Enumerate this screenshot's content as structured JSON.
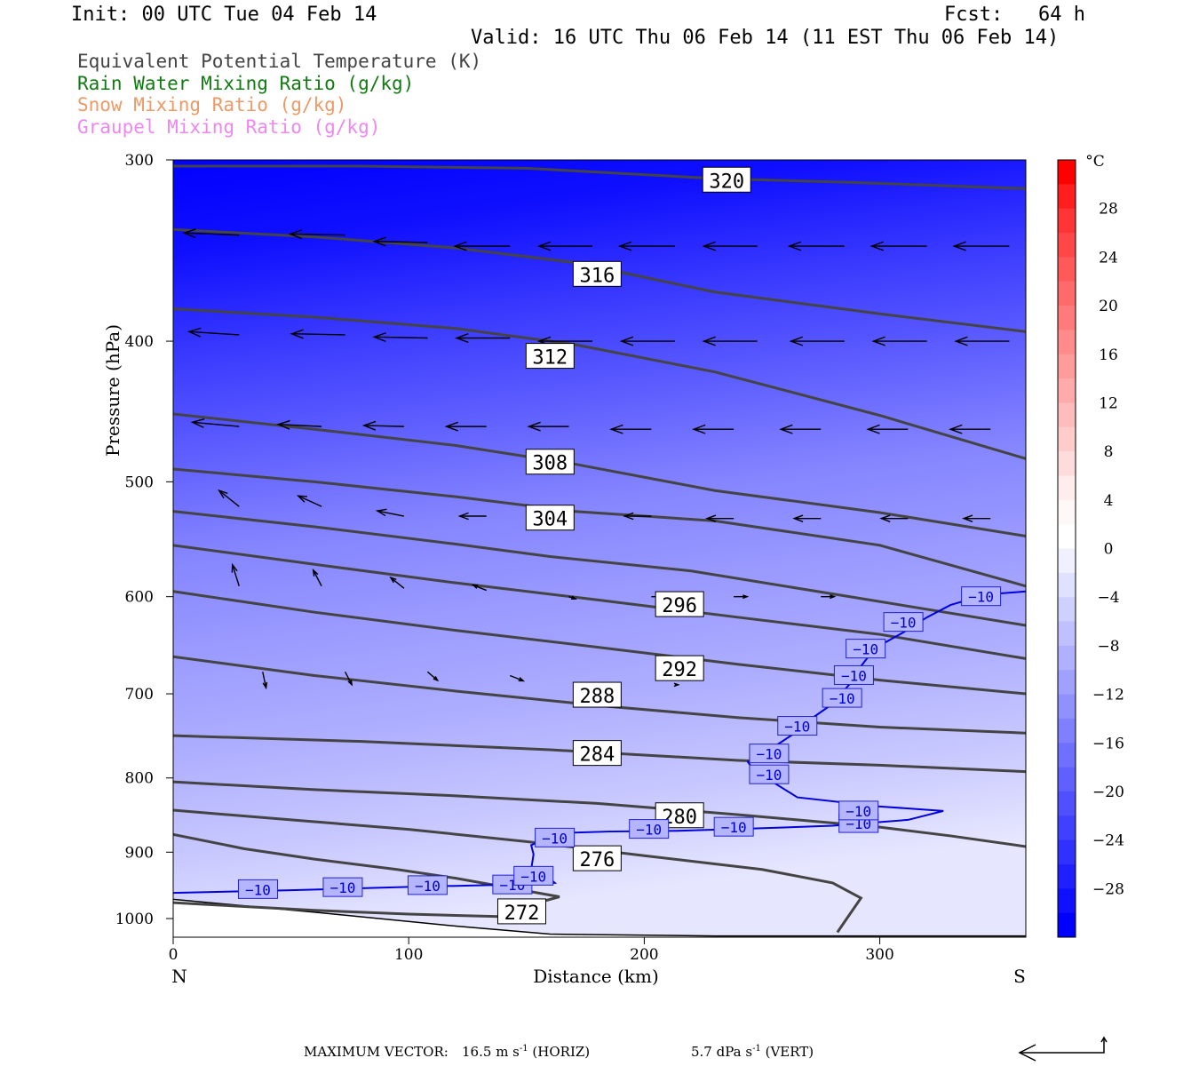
{
  "header": {
    "init": "Init: 00 UTC Tue 04 Feb 14",
    "fcst": "Fcst:   64 h",
    "valid": "Valid: 16 UTC Thu 06 Feb 14 (11 EST Thu 06 Feb 14)"
  },
  "fields": [
    {
      "label": "Equivalent Potential Temperature (K)",
      "color": "#444444"
    },
    {
      "label": "Rain Water Mixing Ratio (g/kg)",
      "color": "#127a12"
    },
    {
      "label": "Snow Mixing Ratio (g/kg)",
      "color": "#ee9966"
    },
    {
      "label": "Graupel Mixing Ratio (g/kg)",
      "color": "#ee88ee"
    }
  ],
  "chart_data": {
    "type": "cross-section",
    "xlabel": "Distance (km)",
    "ylabel": "Pressure (hPa)",
    "xlim": [
      0,
      362
    ],
    "ylim": [
      300,
      1030
    ],
    "y_scale": "log-pressure (inverted)",
    "x_ticks": [
      0,
      100,
      200,
      300
    ],
    "y_ticks": [
      300,
      400,
      500,
      600,
      700,
      800,
      900,
      1000
    ],
    "x_end_labels": {
      "left": "N",
      "right": "S"
    },
    "colorbar": {
      "unit": "°C",
      "tick_labels": [
        "28",
        "24",
        "20",
        "16",
        "12",
        "8",
        "4",
        "0",
        "−4",
        "−8",
        "−12",
        "−16",
        "−20",
        "−24",
        "−28"
      ],
      "levels": [
        32,
        30,
        28,
        26,
        24,
        22,
        20,
        18,
        16,
        14,
        12,
        10,
        8,
        6,
        4,
        2,
        0,
        -2,
        -4,
        -6,
        -8,
        -10,
        -12,
        -14,
        -16,
        -18,
        -20,
        -22,
        -24,
        -26,
        -28,
        -30,
        -32
      ],
      "colors": [
        "#ff0000",
        "#ff1e1e",
        "#ff3434",
        "#ff4747",
        "#ff5959",
        "#ff6a6a",
        "#ff7a7a",
        "#ff8b8b",
        "#ff9b9b",
        "#ffabab",
        "#ffbcbc",
        "#ffcccc",
        "#ffdcdc",
        "#ffecec",
        "#fff8f8",
        "#ffffff",
        "#f0f0ff",
        "#e0e0ff",
        "#d0d0ff",
        "#c0c0ff",
        "#b0b0ff",
        "#a0a0ff",
        "#9090ff",
        "#8080ff",
        "#7070ff",
        "#6060ff",
        "#5050ff",
        "#4040ff",
        "#3030ff",
        "#2020ff",
        "#1010ff",
        "#0000ff"
      ]
    },
    "theta_e_contours": [
      {
        "level": 272,
        "label": "272",
        "points": [
          [
            0,
            975
          ],
          [
            25,
            980
          ],
          [
            60,
            987
          ],
          [
            100,
            993
          ],
          [
            140,
            997
          ],
          [
            155,
            975
          ],
          [
            164,
            966
          ],
          [
            150,
            957
          ],
          [
            120,
            938
          ],
          [
            95,
            925
          ],
          [
            60,
            910
          ],
          [
            30,
            895
          ],
          [
            0,
            875
          ]
        ]
      },
      {
        "level": 276,
        "label": "276",
        "points": [
          [
            0,
            842
          ],
          [
            50,
            855
          ],
          [
            100,
            868
          ],
          [
            150,
            885
          ],
          [
            200,
            905
          ],
          [
            250,
            925
          ],
          [
            280,
            945
          ],
          [
            292,
            968
          ],
          [
            286,
            1000
          ],
          [
            282,
            1022
          ]
        ]
      },
      {
        "level": 280,
        "label": "280",
        "points": [
          [
            0,
            805
          ],
          [
            60,
            815
          ],
          [
            120,
            823
          ],
          [
            180,
            833
          ],
          [
            240,
            848
          ],
          [
            300,
            865
          ],
          [
            330,
            877
          ],
          [
            362,
            892
          ]
        ]
      },
      {
        "level": 284,
        "label": "284",
        "points": [
          [
            0,
            748
          ],
          [
            80,
            755
          ],
          [
            160,
            765
          ],
          [
            240,
            778
          ],
          [
            300,
            784
          ],
          [
            362,
            792
          ]
        ]
      },
      {
        "level": 288,
        "label": "288",
        "points": [
          [
            0,
            660
          ],
          [
            60,
            680
          ],
          [
            120,
            697
          ],
          [
            180,
            713
          ],
          [
            240,
            727
          ],
          [
            300,
            738
          ],
          [
            362,
            745
          ]
        ]
      },
      {
        "level": 292,
        "label": "292",
        "points": [
          [
            0,
            595
          ],
          [
            60,
            615
          ],
          [
            120,
            633
          ],
          [
            180,
            650
          ],
          [
            240,
            668
          ],
          [
            300,
            685
          ],
          [
            362,
            700
          ]
        ]
      },
      {
        "level": 296,
        "label": "296",
        "points": [
          [
            0,
            553
          ],
          [
            60,
            570
          ],
          [
            120,
            587
          ],
          [
            180,
            603
          ],
          [
            240,
            620
          ],
          [
            300,
            637
          ],
          [
            362,
            662
          ]
        ]
      },
      {
        "level": 300,
        "label": "",
        "points": [
          [
            0,
            524
          ],
          [
            60,
            537
          ],
          [
            120,
            552
          ],
          [
            160,
            563
          ],
          [
            220,
            576
          ],
          [
            290,
            601
          ],
          [
            362,
            628
          ]
        ]
      },
      {
        "level": 304,
        "label": "304",
        "points": [
          [
            0,
            490
          ],
          [
            60,
            500
          ],
          [
            120,
            512
          ],
          [
            170,
            524
          ],
          [
            230,
            532
          ],
          [
            300,
            553
          ],
          [
            362,
            590
          ]
        ]
      },
      {
        "level": 308,
        "label": "308",
        "points": [
          [
            0,
            449
          ],
          [
            60,
            460
          ],
          [
            120,
            472
          ],
          [
            170,
            486
          ],
          [
            230,
            507
          ],
          [
            300,
            525
          ],
          [
            362,
            545
          ]
        ]
      },
      {
        "level": 312,
        "label": "312",
        "points": [
          [
            0,
            380
          ],
          [
            60,
            385
          ],
          [
            120,
            392
          ],
          [
            170,
            402
          ],
          [
            230,
            420
          ],
          [
            300,
            450
          ],
          [
            362,
            482
          ]
        ]
      },
      {
        "level": 316,
        "label": "316",
        "points": [
          [
            0,
            335
          ],
          [
            60,
            339
          ],
          [
            120,
            345
          ],
          [
            170,
            353
          ],
          [
            230,
            370
          ],
          [
            300,
            383
          ],
          [
            362,
            394
          ]
        ]
      },
      {
        "level": 320,
        "label": "320",
        "points": [
          [
            0,
            303
          ],
          [
            80,
            303
          ],
          [
            150,
            304
          ],
          [
            230,
            309
          ],
          [
            290,
            311
          ],
          [
            362,
            314
          ]
        ]
      }
    ],
    "temperature_contours": [
      {
        "level": -10,
        "label": "−10",
        "points": [
          [
            0,
            960
          ],
          [
            50,
            956
          ],
          [
            100,
            951
          ],
          [
            138,
            948
          ],
          [
            148,
            947
          ],
          [
            162,
            945
          ],
          [
            158,
            933
          ],
          [
            152,
            925
          ],
          [
            153,
            903
          ],
          [
            152,
            890
          ],
          [
            165,
            873
          ],
          [
            185,
            871
          ],
          [
            214,
            870
          ],
          [
            245,
            867
          ],
          [
            280,
            863
          ],
          [
            312,
            855
          ],
          [
            327,
            843
          ],
          [
            300,
            837
          ],
          [
            265,
            825
          ],
          [
            255,
            806
          ],
          [
            250,
            796
          ],
          [
            246,
            788
          ],
          [
            244,
            780
          ],
          [
            250,
            770
          ],
          [
            258,
            756
          ],
          [
            265,
            743
          ],
          [
            270,
            730
          ],
          [
            279,
            713
          ],
          [
            287,
            690
          ],
          [
            292,
            670
          ],
          [
            298,
            651
          ],
          [
            310,
            635
          ],
          [
            320,
            620
          ],
          [
            330,
            608
          ],
          [
            345,
            598
          ],
          [
            362,
            595
          ]
        ]
      }
    ],
    "tick_label_contour_labels": [
      "−10"
    ],
    "wind_vectors": [
      {
        "x": 28,
        "p": 338,
        "u": -16.5,
        "w": 0.2
      },
      {
        "x": 73,
        "p": 338,
        "u": -16.5,
        "w": 0.1
      },
      {
        "x": 108,
        "p": 342,
        "u": -16,
        "w": 0.1
      },
      {
        "x": 143,
        "p": 344,
        "u": -16.5,
        "w": 0
      },
      {
        "x": 178,
        "p": 344,
        "u": -16,
        "w": 0
      },
      {
        "x": 213,
        "p": 344,
        "u": -16.5,
        "w": 0
      },
      {
        "x": 248,
        "p": 344,
        "u": -16,
        "w": 0
      },
      {
        "x": 285,
        "p": 344,
        "u": -16.5,
        "w": 0
      },
      {
        "x": 320,
        "p": 344,
        "u": -16.5,
        "w": 0
      },
      {
        "x": 355,
        "p": 344,
        "u": -16.5,
        "w": 0
      },
      {
        "x": 28,
        "p": 396,
        "u": -15,
        "w": 0.3
      },
      {
        "x": 73,
        "p": 396,
        "u": -16,
        "w": 0.1
      },
      {
        "x": 108,
        "p": 398,
        "u": -16,
        "w": 0.1
      },
      {
        "x": 143,
        "p": 398,
        "u": -16,
        "w": 0
      },
      {
        "x": 178,
        "p": 400,
        "u": -16,
        "w": 0
      },
      {
        "x": 213,
        "p": 400,
        "u": -16,
        "w": 0
      },
      {
        "x": 248,
        "p": 400,
        "u": -16,
        "w": 0
      },
      {
        "x": 285,
        "p": 400,
        "u": -16,
        "w": 0
      },
      {
        "x": 320,
        "p": 400,
        "u": -16,
        "w": 0
      },
      {
        "x": 355,
        "p": 400,
        "u": -16,
        "w": 0
      },
      {
        "x": 28,
        "p": 458,
        "u": -14,
        "w": 0.4
      },
      {
        "x": 63,
        "p": 458,
        "u": -13,
        "w": 0.2
      },
      {
        "x": 98,
        "p": 458,
        "u": -12,
        "w": 0.1
      },
      {
        "x": 133,
        "p": 458,
        "u": -12,
        "w": 0
      },
      {
        "x": 168,
        "p": 458,
        "u": -12,
        "w": 0
      },
      {
        "x": 203,
        "p": 460,
        "u": -12,
        "w": 0
      },
      {
        "x": 238,
        "p": 460,
        "u": -12,
        "w": 0
      },
      {
        "x": 275,
        "p": 460,
        "u": -12,
        "w": 0
      },
      {
        "x": 312,
        "p": 460,
        "u": -12,
        "w": 0
      },
      {
        "x": 347,
        "p": 460,
        "u": -12,
        "w": 0
      },
      {
        "x": 28,
        "p": 520,
        "u": -6,
        "w": 1.5
      },
      {
        "x": 63,
        "p": 520,
        "u": -7,
        "w": 1.0
      },
      {
        "x": 98,
        "p": 528,
        "u": -8,
        "w": 0.5
      },
      {
        "x": 133,
        "p": 528,
        "u": -8,
        "w": 0
      },
      {
        "x": 168,
        "p": 528,
        "u": -8,
        "w": 0
      },
      {
        "x": 203,
        "p": 528,
        "u": -8,
        "w": 0
      },
      {
        "x": 238,
        "p": 530,
        "u": -8,
        "w": 0
      },
      {
        "x": 275,
        "p": 530,
        "u": -8,
        "w": 0
      },
      {
        "x": 312,
        "p": 530,
        "u": -8,
        "w": 0
      },
      {
        "x": 347,
        "p": 530,
        "u": -8,
        "w": 0
      },
      {
        "x": 28,
        "p": 590,
        "u": -2,
        "w": 2.0
      },
      {
        "x": 63,
        "p": 590,
        "u": -2.5,
        "w": 1.5
      },
      {
        "x": 98,
        "p": 592,
        "u": -4,
        "w": 1.0
      },
      {
        "x": 133,
        "p": 594,
        "u": -4,
        "w": 0.5
      },
      {
        "x": 168,
        "p": 600,
        "u": 2,
        "w": -0.2
      },
      {
        "x": 203,
        "p": 600,
        "u": 4,
        "w": 0
      },
      {
        "x": 238,
        "p": 600,
        "u": 4,
        "w": 0
      },
      {
        "x": 275,
        "p": 600,
        "u": 4,
        "w": 0
      },
      {
        "x": 38,
        "p": 676,
        "u": 1,
        "w": -1.5
      },
      {
        "x": 73,
        "p": 676,
        "u": 2,
        "w": -1.2
      },
      {
        "x": 108,
        "p": 676,
        "u": 3,
        "w": -0.8
      },
      {
        "x": 143,
        "p": 680,
        "u": 4,
        "w": -0.5
      },
      {
        "x": 178,
        "p": 688,
        "u": 3,
        "w": -0.3
      },
      {
        "x": 213,
        "p": 690,
        "u": 1,
        "w": 0
      }
    ],
    "max_vector": {
      "horiz": "16.5",
      "vert": "5.7"
    }
  },
  "footer": {
    "max_vector_label": "MAXIMUM VECTOR:",
    "horiz_value": "16.5",
    "horiz_unit_pre": "m s",
    "horiz_unit_sup": "-1",
    "horiz_tag": "(HORIZ)",
    "vert_value": "5.7",
    "vert_unit_pre": "dPa s",
    "vert_unit_sup": "-1",
    "vert_tag": "(VERT)"
  }
}
